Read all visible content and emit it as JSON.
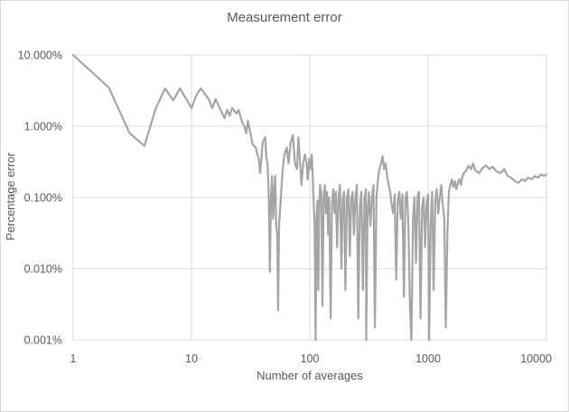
{
  "chart_data": {
    "type": "line",
    "title": "Measurement error",
    "xlabel": "Number of averages",
    "ylabel": "Percentage error",
    "xscale": "log",
    "yscale": "log",
    "xlim": [
      1,
      10000
    ],
    "ylim": [
      0.001,
      10
    ],
    "x_ticks": [
      {
        "value": 1,
        "label": "1"
      },
      {
        "value": 10,
        "label": "10"
      },
      {
        "value": 100,
        "label": "100"
      },
      {
        "value": 1000,
        "label": "1000"
      },
      {
        "value": 10000,
        "label": "10000"
      }
    ],
    "y_ticks": [
      {
        "value": 10,
        "label": "10.000%"
      },
      {
        "value": 1,
        "label": "1.000%"
      },
      {
        "value": 0.1,
        "label": "0.100%"
      },
      {
        "value": 0.01,
        "label": "0.010%"
      },
      {
        "value": 0.001,
        "label": "0.001%"
      }
    ],
    "grid": "vertical-and-horizontal major",
    "legend": "none",
    "series": [
      {
        "color": "#a5a5a5",
        "points": [
          [
            1,
            10
          ],
          [
            2,
            3.5
          ],
          [
            3,
            0.8
          ],
          [
            4,
            0.53
          ],
          [
            5,
            1.8
          ],
          [
            6,
            3.4
          ],
          [
            7,
            2.3
          ],
          [
            8,
            3.4
          ],
          [
            10,
            1.8
          ],
          [
            11,
            2.7
          ],
          [
            12,
            3.4
          ],
          [
            14,
            2.4
          ],
          [
            15,
            1.8
          ],
          [
            16,
            2.4
          ],
          [
            19,
            1.3
          ],
          [
            20,
            1.7
          ],
          [
            21,
            1.4
          ],
          [
            22,
            1.8
          ],
          [
            24,
            1.5
          ],
          [
            25,
            1.7
          ],
          [
            27,
            1.1
          ],
          [
            28,
            1.0
          ],
          [
            29,
            0.8
          ],
          [
            30,
            1.2
          ],
          [
            31,
            0.9
          ],
          [
            33,
            0.55
          ],
          [
            35,
            0.5
          ],
          [
            36,
            0.4
          ],
          [
            37,
            0.35
          ],
          [
            38,
            0.22
          ],
          [
            40,
            0.6
          ],
          [
            42,
            0.7
          ],
          [
            43,
            0.35
          ],
          [
            44,
            0.3
          ],
          [
            45,
            0.1
          ],
          [
            46,
            0.009
          ],
          [
            47,
            0.1
          ],
          [
            48,
            0.2
          ],
          [
            49,
            0.05
          ],
          [
            50,
            0.12
          ],
          [
            51,
            0.2
          ],
          [
            52,
            0.04
          ],
          [
            53,
            0.03
          ],
          [
            54,
            0.0026
          ],
          [
            55,
            0.04
          ],
          [
            57,
            0.1
          ],
          [
            59,
            0.25
          ],
          [
            61,
            0.4
          ],
          [
            64,
            0.5
          ],
          [
            66,
            0.3
          ],
          [
            69,
            0.6
          ],
          [
            72,
            0.75
          ],
          [
            75,
            0.3
          ],
          [
            78,
            0.25
          ],
          [
            80,
            0.7
          ],
          [
            82,
            0.4
          ],
          [
            85,
            0.15
          ],
          [
            88,
            0.3
          ],
          [
            91,
            0.4
          ],
          [
            94,
            0.3
          ],
          [
            96,
            0.18
          ],
          [
            99,
            0.35
          ],
          [
            102,
            0.25
          ],
          [
            104,
            0.4
          ],
          [
            106,
            0.2
          ],
          [
            108,
            0.08
          ],
          [
            110,
            0.04
          ],
          [
            112,
            0.001
          ],
          [
            114,
            0.05
          ],
          [
            116,
            0.09
          ],
          [
            118,
            0.005
          ],
          [
            120,
            0.07
          ],
          [
            122,
            0.15
          ],
          [
            125,
            0.12
          ],
          [
            128,
            0.003
          ],
          [
            131,
            0.1
          ],
          [
            134,
            0.15
          ],
          [
            137,
            0.06
          ],
          [
            140,
            0.12
          ],
          [
            143,
            0.03
          ],
          [
            146,
            0.1
          ],
          [
            150,
            0.002
          ],
          [
            154,
            0.08
          ],
          [
            158,
            0.13
          ],
          [
            162,
            0.06
          ],
          [
            166,
            0.12
          ],
          [
            170,
            0.02
          ],
          [
            175,
            0.1
          ],
          [
            180,
            0.15
          ],
          [
            185,
            0.01
          ],
          [
            190,
            0.1
          ],
          [
            195,
            0.12
          ],
          [
            200,
            0.005
          ],
          [
            206,
            0.1
          ],
          [
            212,
            0.13
          ],
          [
            218,
            0.015
          ],
          [
            224,
            0.1
          ],
          [
            230,
            0.12
          ],
          [
            236,
            0.03
          ],
          [
            243,
            0.1
          ],
          [
            250,
            0.15
          ],
          [
            257,
            0.002
          ],
          [
            265,
            0.07
          ],
          [
            273,
            0.12
          ],
          [
            281,
            0.005
          ],
          [
            290,
            0.1
          ],
          [
            298,
            0.13
          ],
          [
            300,
            0.001
          ],
          [
            307,
            0.05
          ],
          [
            316,
            0.12
          ],
          [
            325,
            0.04
          ],
          [
            335,
            0.1
          ],
          [
            345,
            0.15
          ],
          [
            355,
            0.0015
          ],
          [
            366,
            0.1
          ],
          [
            377,
            0.18
          ],
          [
            388,
            0.25
          ],
          [
            400,
            0.3
          ],
          [
            412,
            0.38
          ],
          [
            424,
            0.25
          ],
          [
            437,
            0.3
          ],
          [
            450,
            0.2
          ],
          [
            464,
            0.15
          ],
          [
            478,
            0.12
          ],
          [
            492,
            0.08
          ],
          [
            507,
            0.06
          ],
          [
            522,
            0.11
          ],
          [
            538,
            0.007
          ],
          [
            554,
            0.09
          ],
          [
            571,
            0.12
          ],
          [
            588,
            0.05
          ],
          [
            606,
            0.11
          ],
          [
            624,
            0.004
          ],
          [
            643,
            0.1
          ],
          [
            662,
            0.12
          ],
          [
            682,
            0.04
          ],
          [
            702,
            0.003
          ],
          [
            723,
            0.001
          ],
          [
            745,
            0.05
          ],
          [
            767,
            0.1
          ],
          [
            790,
            0.012
          ],
          [
            814,
            0.1
          ],
          [
            838,
            0.12
          ],
          [
            863,
            0.002
          ],
          [
            889,
            0.07
          ],
          [
            916,
            0.1
          ],
          [
            943,
            0.02
          ],
          [
            971,
            0.08
          ],
          [
            1000,
            0.11
          ],
          [
            1020,
            0.001
          ],
          [
            1050,
            0.04
          ],
          [
            1082,
            0.12
          ],
          [
            1114,
            0.005
          ],
          [
            1148,
            0.09
          ],
          [
            1182,
            0.13
          ],
          [
            1218,
            0.06
          ],
          [
            1254,
            0.1
          ],
          [
            1292,
            0.15
          ],
          [
            1330,
            0.08
          ],
          [
            1370,
            0.05
          ],
          [
            1411,
            0.0015
          ],
          [
            1453,
            0.03
          ],
          [
            1497,
            0.12
          ],
          [
            1542,
            0.15
          ],
          [
            1588,
            0.18
          ],
          [
            1636,
            0.14
          ],
          [
            1685,
            0.17
          ],
          [
            1735,
            0.13
          ],
          [
            1787,
            0.16
          ],
          [
            1841,
            0.18
          ],
          [
            1896,
            0.15
          ],
          [
            1953,
            0.2
          ],
          [
            2011,
            0.22
          ],
          [
            2100,
            0.24
          ],
          [
            2200,
            0.28
          ],
          [
            2300,
            0.25
          ],
          [
            2400,
            0.3
          ],
          [
            2500,
            0.24
          ],
          [
            2700,
            0.22
          ],
          [
            2900,
            0.26
          ],
          [
            3100,
            0.28
          ],
          [
            3300,
            0.25
          ],
          [
            3500,
            0.27
          ],
          [
            3800,
            0.23
          ],
          [
            4100,
            0.22
          ],
          [
            4400,
            0.25
          ],
          [
            4700,
            0.2
          ],
          [
            5000,
            0.19
          ],
          [
            5400,
            0.17
          ],
          [
            5800,
            0.16
          ],
          [
            6200,
            0.18
          ],
          [
            6600,
            0.17
          ],
          [
            7000,
            0.19
          ],
          [
            7500,
            0.18
          ],
          [
            8000,
            0.2
          ],
          [
            8500,
            0.19
          ],
          [
            9000,
            0.21
          ],
          [
            9500,
            0.2
          ],
          [
            10000,
            0.21
          ]
        ]
      }
    ]
  }
}
